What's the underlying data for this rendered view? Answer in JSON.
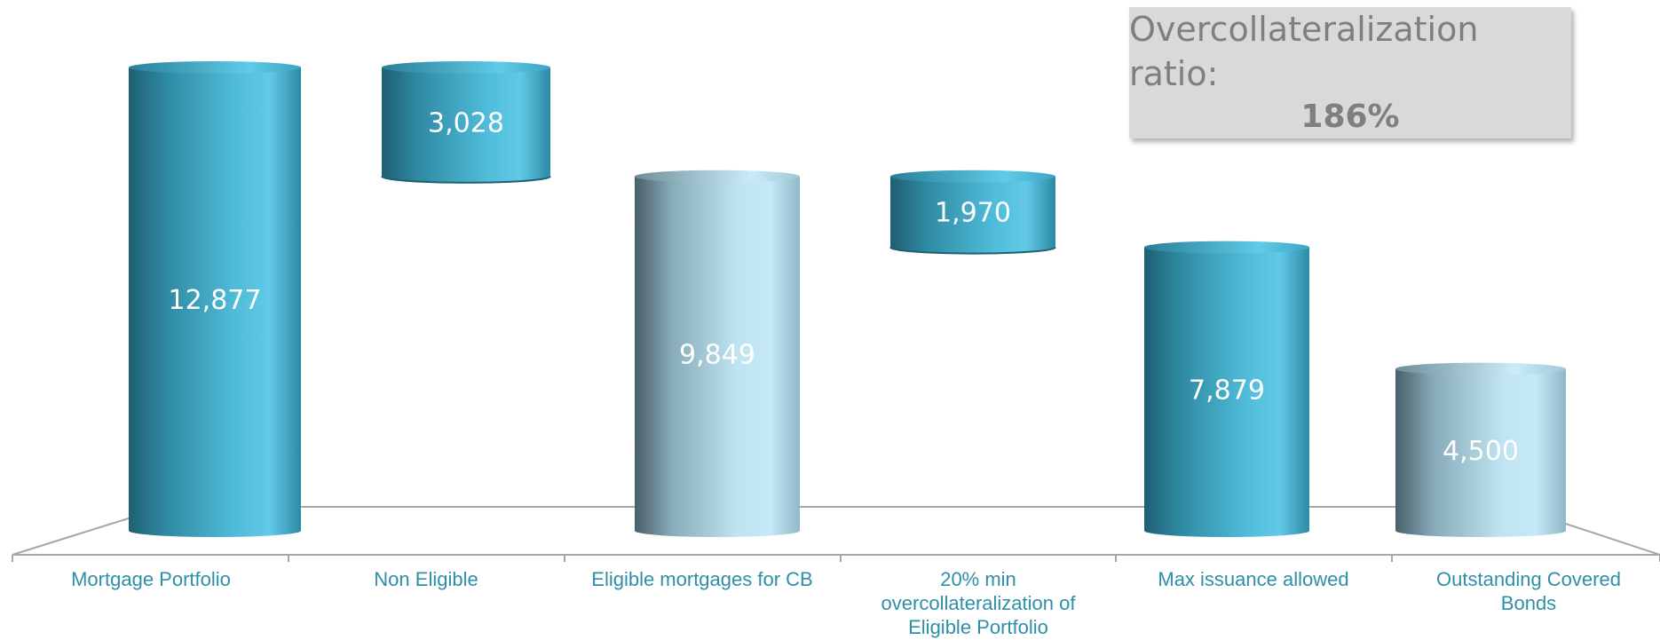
{
  "chart_data": {
    "type": "bar",
    "subtype": "waterfall-3d-cylinder",
    "title": "",
    "xlabel": "",
    "ylabel": "",
    "ylim": [
      0,
      12877
    ],
    "grid": false,
    "legend": "none",
    "categories": [
      "Mortgage Portfolio",
      "Non Eligible",
      "Eligible mortgages for CB",
      "20% min overcollateralization of Eligible Portfolio",
      "Max issuance allowed",
      "Outstanding Covered Bonds"
    ],
    "bars": [
      {
        "category": "Mortgage Portfolio",
        "base": 0,
        "value": 12877,
        "label": "12,877",
        "style": "teal"
      },
      {
        "category": "Non Eligible",
        "base": 9849,
        "value": 3028,
        "label": "3,028",
        "style": "teal"
      },
      {
        "category": "Eligible mortgages for CB",
        "base": 0,
        "value": 9849,
        "label": "9,849",
        "style": "light"
      },
      {
        "category": "20% min overcollateralization of Eligible Portfolio",
        "base": 7879,
        "value": 1970,
        "label": "1,970",
        "style": "teal"
      },
      {
        "category": "Max issuance allowed",
        "base": 0,
        "value": 7879,
        "label": "7,879",
        "style": "teal"
      },
      {
        "category": "Outstanding Covered Bonds",
        "base": 0,
        "value": 4500,
        "label": "4,500",
        "style": "light"
      }
    ],
    "annotation": {
      "label": "Overcollateralization ratio:",
      "value": "186%"
    },
    "colors": {
      "teal_dark": "#1f5f73",
      "teal_mid": "#3aa6c2",
      "teal_light": "#62c9e6",
      "light_dark": "#4a5f69",
      "light_mid": "#a6d0de",
      "light_light": "#c6e9f7",
      "category_text": "#2e8fa8",
      "floor_line": "#a6a6a6",
      "box_bg": "#d9d9d9",
      "box_text": "#7f7f7f"
    }
  }
}
